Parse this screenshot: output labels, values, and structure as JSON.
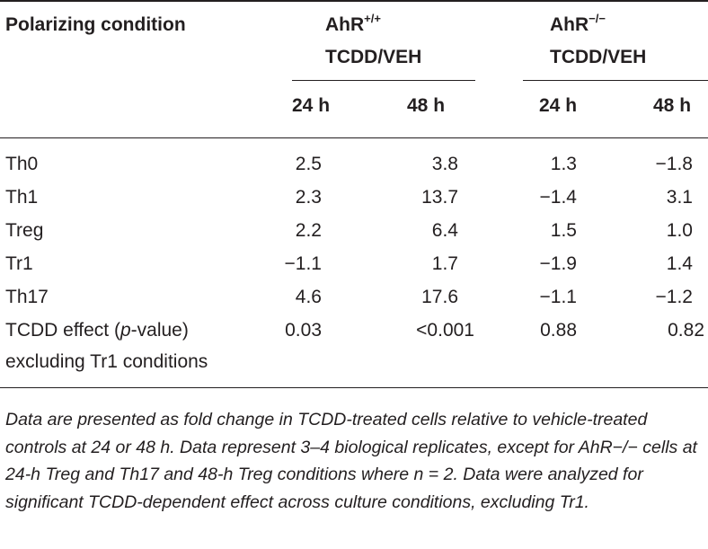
{
  "header": {
    "polarizing_condition": "Polarizing condition",
    "group1_name": "AhR",
    "group1_sup": "+/+",
    "group1_sub": "TCDD/VEH",
    "group2_name": "AhR",
    "group2_sup": "−/−",
    "group2_sub": "TCDD/VEH",
    "time_cols": [
      "24 h",
      "48 h",
      "24 h",
      "48 h"
    ]
  },
  "rows": [
    {
      "label": "Th0",
      "values": [
        "2.5",
        "3.8",
        "1.3",
        "−1.8"
      ]
    },
    {
      "label": "Th1",
      "values": [
        "2.3",
        "13.7",
        "−1.4",
        "3.1"
      ]
    },
    {
      "label": "Treg",
      "values": [
        "2.2",
        "6.4",
        "1.5",
        "1.0"
      ]
    },
    {
      "label": "Tr1",
      "values": [
        "−1.1",
        "1.7",
        "−1.9",
        "1.4"
      ]
    },
    {
      "label": "Th17",
      "values": [
        "4.6",
        "17.6",
        "−1.1",
        "−1.2"
      ]
    }
  ],
  "tcdd_row": {
    "label_pre": "TCDD effect (",
    "label_italic": "p",
    "label_post": "-value)",
    "label_line2": "excluding Tr1 conditions",
    "values": [
      "0.03",
      "<0.001",
      "0.88",
      "0.82"
    ]
  },
  "footnote": "Data are presented as fold change in TCDD-treated cells relative to vehicle-treated controls at 24 or 48 h. Data represent 3–4 biological replicates, except for AhR−/− cells at 24-h Treg and Th17 and 48-h Treg conditions where n = 2. Data were analyzed for significant TCDD-dependent effect across culture conditions, excluding Tr1."
}
